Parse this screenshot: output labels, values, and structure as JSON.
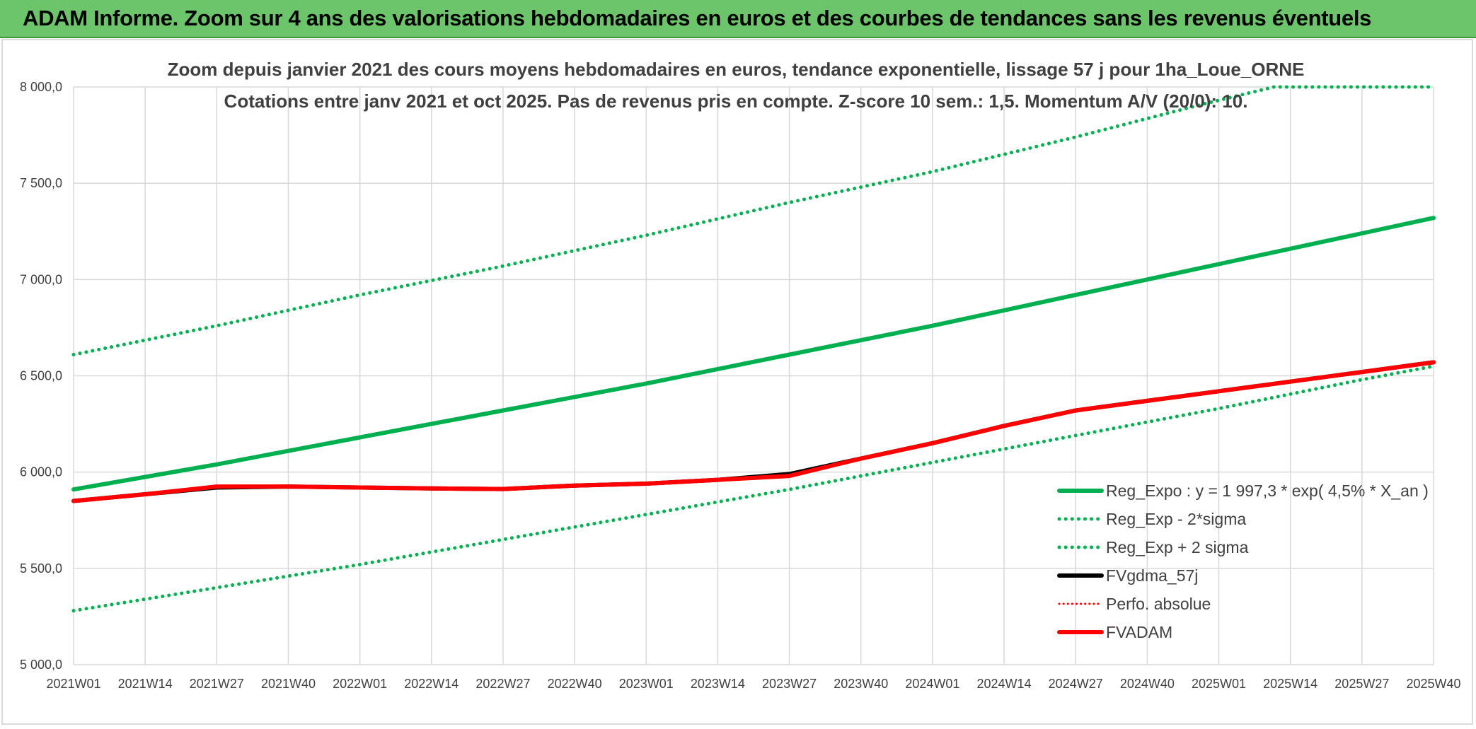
{
  "banner": {
    "title": "ADAM Informe. Zoom sur 4 ans des valorisations hebdomadaires en euros et des courbes de tendances sans les revenus éventuels"
  },
  "colors": {
    "banner_bg": "#6cc56a",
    "green": "#00b050",
    "red": "#ff0000",
    "black": "#000000",
    "grid": "#d9d9d9",
    "text": "#404040"
  },
  "chart_data": {
    "type": "line",
    "title_lines": [
      "Zoom depuis janvier 2021 des cours moyens hebdomadaires en euros, tendance exponentielle, lissage 57 j pour 1ha_Loue_ORNE",
      "Cotations entre janv 2021 et oct 2025. Pas de revenus pris en compte. Z-score 10 sem.: 1,5. Momentum A/V (20/0): 10."
    ],
    "x_tick_labels": [
      "2021W01",
      "2021W14",
      "2021W27",
      "2021W40",
      "2022W01",
      "2022W14",
      "2022W27",
      "2022W40",
      "2023W01",
      "2023W14",
      "2023W27",
      "2023W40",
      "2024W01",
      "2024W14",
      "2024W27",
      "2024W40",
      "2025W01",
      "2025W14",
      "2025W27",
      "2025W40"
    ],
    "y_tick_labels": [
      "5 000,0",
      "5 500,0",
      "6 000,0",
      "6 500,0",
      "7 000,0",
      "7 500,0",
      "8 000,0"
    ],
    "ylim": [
      5000,
      8000
    ],
    "x_range_weeks": [
      0,
      247
    ],
    "legend": [
      {
        "label": "Reg_Expo : y = 1 997,3 * exp( 4,5% *  X_an )",
        "style": "solid-thick",
        "color": "#00b050"
      },
      {
        "label": "Reg_Exp - 2*sigma",
        "style": "dotted",
        "color": "#00b050"
      },
      {
        "label": "Reg_Exp + 2 sigma",
        "style": "dotted",
        "color": "#00b050"
      },
      {
        "label": "FVgdma_57j",
        "style": "solid",
        "color": "#000000"
      },
      {
        "label": "Perfo. absolue",
        "style": "dotted-thin",
        "color": "#ff0000"
      },
      {
        "label": "FVADAM",
        "style": "solid-thick",
        "color": "#ff0000"
      }
    ],
    "series": [
      {
        "name": "Reg_Expo : y = 1 997,3 * exp( 4,5% *  X_an )",
        "x": [
          0,
          26,
          52,
          78,
          104,
          130,
          156,
          182,
          208,
          234,
          247
        ],
        "values": [
          5910,
          6040,
          6180,
          6320,
          6460,
          6610,
          6760,
          6920,
          7080,
          7240,
          7320
        ]
      },
      {
        "name": "Reg_Exp - 2*sigma",
        "x": [
          0,
          26,
          52,
          78,
          104,
          130,
          156,
          182,
          208,
          234,
          247
        ],
        "values": [
          5280,
          5400,
          5520,
          5650,
          5780,
          5910,
          6050,
          6190,
          6330,
          6480,
          6550
        ]
      },
      {
        "name": "Reg_Exp + 2 sigma",
        "x": [
          0,
          26,
          52,
          78,
          104,
          130,
          156,
          182,
          205,
          218,
          247
        ],
        "values": [
          6610,
          6760,
          6920,
          7070,
          7230,
          7400,
          7560,
          7740,
          7910,
          8000,
          8000
        ]
      },
      {
        "name": "FVgdma_57j",
        "x": [
          0,
          13,
          26,
          39,
          52,
          65,
          78,
          91,
          104,
          117,
          130,
          143,
          156,
          169,
          182,
          195,
          208,
          221,
          234,
          247
        ],
        "values": [
          5850,
          5885,
          5920,
          5925,
          5920,
          5915,
          5912,
          5930,
          5940,
          5960,
          5990,
          6070,
          6150,
          6240,
          6320,
          6370,
          6420,
          6470,
          6520,
          6570
        ]
      },
      {
        "name": "Perfo. absolue",
        "x": [],
        "values": []
      },
      {
        "name": "FVADAM",
        "x": [
          0,
          13,
          26,
          39,
          52,
          65,
          78,
          91,
          104,
          117,
          130,
          143,
          156,
          169,
          182,
          195,
          208,
          221,
          234,
          247
        ],
        "values": [
          5850,
          5885,
          5925,
          5925,
          5920,
          5915,
          5912,
          5930,
          5940,
          5960,
          5980,
          6070,
          6150,
          6240,
          6320,
          6370,
          6420,
          6470,
          6520,
          6570
        ]
      }
    ]
  }
}
